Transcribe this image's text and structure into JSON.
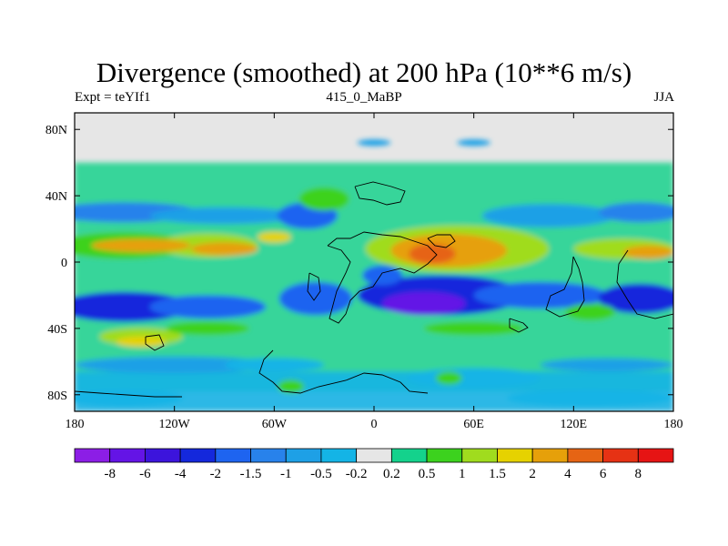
{
  "chart_data": {
    "type": "heatmap",
    "title": "Divergence (smoothed) at 200 hPa (10**6 m/s)",
    "subtitle_left": "Expt = teYIf1",
    "subtitle_center": "415_0_MaBP",
    "subtitle_right": "JJA",
    "xlim": [
      -180,
      180
    ],
    "ylim": [
      -90,
      90
    ],
    "x_ticks": [
      {
        "value": -180,
        "label": "180"
      },
      {
        "value": -120,
        "label": "120W"
      },
      {
        "value": -60,
        "label": "60W"
      },
      {
        "value": 0,
        "label": "0"
      },
      {
        "value": 60,
        "label": "60E"
      },
      {
        "value": 120,
        "label": "120E"
      },
      {
        "value": 180,
        "label": "180"
      }
    ],
    "y_ticks": [
      {
        "value": 80,
        "label": "80N"
      },
      {
        "value": 40,
        "label": "40N"
      },
      {
        "value": 0,
        "label": "0"
      },
      {
        "value": -40,
        "label": "40S"
      },
      {
        "value": -80,
        "label": "80S"
      }
    ],
    "levels": [
      "-8",
      "-6",
      "-4",
      "-2",
      "-1.5",
      "-1",
      "-0.5",
      "-0.2",
      "0.2",
      "0.5",
      "1",
      "1.5",
      "2",
      "4",
      "6",
      "8"
    ],
    "colors": [
      "#8c1ee6",
      "#6414e6",
      "#3c14dc",
      "#1428dc",
      "#1e64f0",
      "#2882eb",
      "#1ea0e6",
      "#14b4e6",
      "#e6e6e6",
      "#14d28c",
      "#3cd21e",
      "#a0dc1e",
      "#e6d200",
      "#e6a00a",
      "#e66414",
      "#e63214",
      "#e61414"
    ],
    "blobs": [
      {
        "lon": -150,
        "lat": 30,
        "rx": 45,
        "ry": 6,
        "bin": 5
      },
      {
        "lon": -90,
        "lat": 28,
        "rx": 45,
        "ry": 5,
        "bin": 6
      },
      {
        "lon": -40,
        "lat": 28,
        "rx": 18,
        "ry": 8,
        "bin": 4
      },
      {
        "lon": 105,
        "lat": 28,
        "rx": 40,
        "ry": 7,
        "bin": 6
      },
      {
        "lon": 160,
        "lat": 30,
        "rx": 25,
        "ry": 6,
        "bin": 5
      },
      {
        "lon": -150,
        "lat": -27,
        "rx": 40,
        "ry": 9,
        "bin": 3
      },
      {
        "lon": -100,
        "lat": -27,
        "rx": 35,
        "ry": 7,
        "bin": 4
      },
      {
        "lon": -35,
        "lat": -22,
        "rx": 22,
        "ry": 10,
        "bin": 4
      },
      {
        "lon": 40,
        "lat": -20,
        "rx": 50,
        "ry": 12,
        "bin": 3
      },
      {
        "lon": 30,
        "lat": -25,
        "rx": 25,
        "ry": 7,
        "bin": 1
      },
      {
        "lon": 100,
        "lat": -20,
        "rx": 40,
        "ry": 8,
        "bin": 4
      },
      {
        "lon": 160,
        "lat": -22,
        "rx": 25,
        "ry": 9,
        "bin": 3
      },
      {
        "lon": 5,
        "lat": -8,
        "rx": 12,
        "ry": 6,
        "bin": 4
      },
      {
        "lon": -120,
        "lat": -62,
        "rx": 60,
        "ry": 5,
        "bin": 6
      },
      {
        "lon": -60,
        "lat": -62,
        "rx": 30,
        "ry": 4,
        "bin": 7
      },
      {
        "lon": 60,
        "lat": -70,
        "rx": 40,
        "ry": 6,
        "bin": 7
      },
      {
        "lon": 140,
        "lat": -62,
        "rx": 40,
        "ry": 4,
        "bin": 6
      },
      {
        "lon": -150,
        "lat": -82,
        "rx": 35,
        "ry": 5,
        "bin": 7
      },
      {
        "lon": 130,
        "lat": -82,
        "rx": 50,
        "ry": 5,
        "bin": 7
      },
      {
        "lon": 0,
        "lat": 72,
        "rx": 10,
        "ry": 2,
        "bin": 6
      },
      {
        "lon": 60,
        "lat": 72,
        "rx": 10,
        "ry": 2,
        "bin": 6
      },
      {
        "lon": -150,
        "lat": 10,
        "rx": 40,
        "ry": 8,
        "bin": 10
      },
      {
        "lon": -100,
        "lat": 10,
        "rx": 30,
        "ry": 7,
        "bin": 11
      },
      {
        "lon": -140,
        "lat": 10,
        "rx": 30,
        "ry": 4,
        "bin": 13
      },
      {
        "lon": -90,
        "lat": 8,
        "rx": 20,
        "ry": 4,
        "bin": 13
      },
      {
        "lon": -60,
        "lat": 15,
        "rx": 10,
        "ry": 3,
        "bin": 12
      },
      {
        "lon": 50,
        "lat": 8,
        "rx": 55,
        "ry": 14,
        "bin": 11
      },
      {
        "lon": 45,
        "lat": 7,
        "rx": 35,
        "ry": 10,
        "bin": 13
      },
      {
        "lon": 35,
        "lat": 5,
        "rx": 14,
        "ry": 6,
        "bin": 14
      },
      {
        "lon": 150,
        "lat": 8,
        "rx": 30,
        "ry": 6,
        "bin": 11
      },
      {
        "lon": 165,
        "lat": 6,
        "rx": 15,
        "ry": 4,
        "bin": 13
      },
      {
        "lon": -30,
        "lat": 38,
        "rx": 15,
        "ry": 7,
        "bin": 10
      },
      {
        "lon": -140,
        "lat": -45,
        "rx": 25,
        "ry": 5,
        "bin": 11
      },
      {
        "lon": -100,
        "lat": -40,
        "rx": 25,
        "ry": 4,
        "bin": 10
      },
      {
        "lon": -140,
        "lat": -48,
        "rx": 15,
        "ry": 3,
        "bin": 12
      },
      {
        "lon": 60,
        "lat": -40,
        "rx": 30,
        "ry": 4,
        "bin": 10
      },
      {
        "lon": 130,
        "lat": -30,
        "rx": 15,
        "ry": 5,
        "bin": 10
      },
      {
        "lon": -50,
        "lat": -75,
        "rx": 8,
        "ry": 4,
        "bin": 10
      },
      {
        "lon": 45,
        "lat": -70,
        "rx": 8,
        "ry": 4,
        "bin": 10
      }
    ]
  }
}
